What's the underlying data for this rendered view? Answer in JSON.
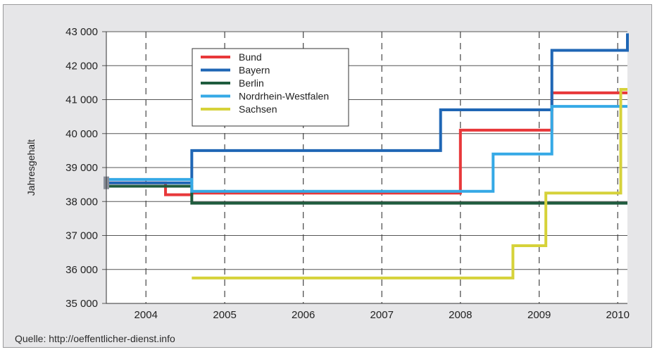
{
  "chart_data": {
    "type": "line",
    "step": true,
    "title": "",
    "xlabel": "",
    "ylabel": "Jahresgehalt",
    "ylim": [
      35000,
      43000
    ],
    "xlim": [
      "2003-07-01",
      "2010-02-15"
    ],
    "y_ticks": [
      35000,
      36000,
      37000,
      38000,
      39000,
      40000,
      41000,
      42000,
      43000
    ],
    "y_tick_labels": [
      "35 000",
      "36 000",
      "37 000",
      "38 000",
      "39 000",
      "40 000",
      "41 000",
      "42 000",
      "43 000"
    ],
    "x_ticks": [
      "2004-01-01",
      "2005-01-01",
      "2006-01-01",
      "2007-01-01",
      "2008-01-01",
      "2009-01-01",
      "2010-01-01"
    ],
    "x_tick_labels": [
      "2004",
      "2005",
      "2006",
      "2007",
      "2008",
      "2009",
      "2010"
    ],
    "grid": {
      "horizontal": "solid",
      "vertical": "dashed"
    },
    "legend_position": "top-left",
    "series": [
      {
        "name": "Bund",
        "color": "#e8383a",
        "x": [
          "2003-07-01",
          "2004-04-01",
          "2004-08-01",
          "2008-01-01",
          "2009-03-01",
          "2010-02-15"
        ],
        "values": [
          38550,
          38200,
          38250,
          40100,
          41200,
          41200
        ]
      },
      {
        "name": "Bayern",
        "color": "#1f66b5",
        "x": [
          "2003-07-01",
          "2004-08-01",
          "2007-10-01",
          "2009-03-01",
          "2010-02-15"
        ],
        "values": [
          38550,
          39500,
          40700,
          42450,
          42950
        ]
      },
      {
        "name": "Berlin",
        "color": "#1f5c3e",
        "x": [
          "2003-07-01",
          "2004-08-01",
          "2010-02-15"
        ],
        "values": [
          38450,
          37950,
          37950
        ]
      },
      {
        "name": "Nordrhein-Westfalen",
        "color": "#35a9e6",
        "x": [
          "2003-07-01",
          "2004-08-01",
          "2008-06-01",
          "2009-03-01",
          "2010-02-15"
        ],
        "values": [
          38650,
          38300,
          39400,
          40800,
          40800
        ]
      },
      {
        "name": "Sachsen",
        "color": "#d6d23a",
        "x": [
          "2004-08-01",
          "2008-09-01",
          "2009-02-01",
          "2010-01-15",
          "2010-02-15"
        ],
        "values": [
          35750,
          36700,
          38250,
          41300,
          41300
        ]
      }
    ],
    "annotations": [
      "Quelle: http://oeffentlicher-dienst.info"
    ]
  }
}
